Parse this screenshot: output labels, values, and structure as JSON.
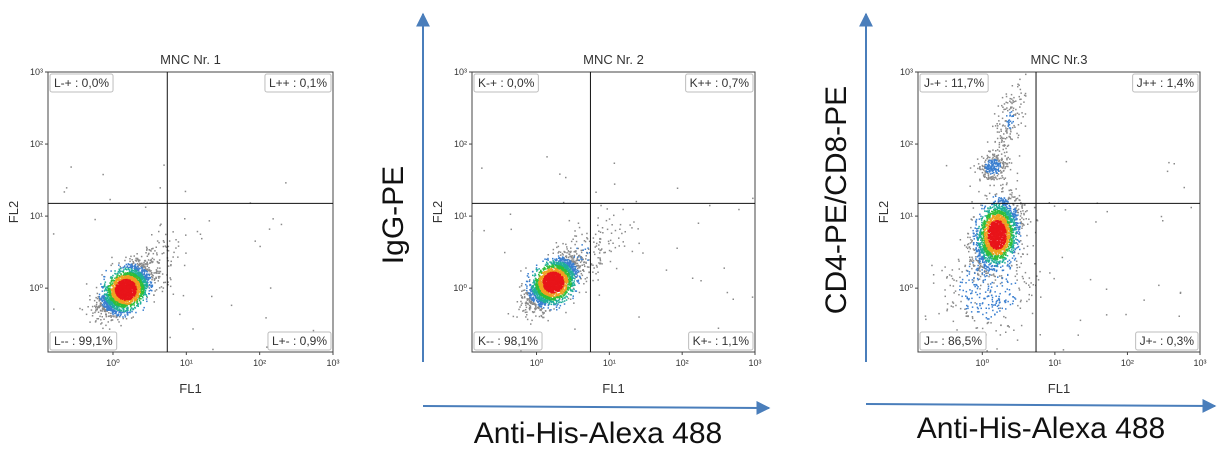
{
  "outer_labels": {
    "y_plot2": "IgG-PE",
    "y_plot3": "CD4-PE/CD8-PE",
    "x_plot2": "Anti-His-Alexa 488",
    "x_plot3": "Anti-His-Alexa 488"
  },
  "colors": {
    "arrow": "#4a7ebb",
    "frame": "#444444",
    "gate": "#111111"
  },
  "chart_data": [
    {
      "type": "scatter",
      "title": "MNC Nr. 1",
      "xlabel": "FL1",
      "ylabel": "FL2",
      "x_scale": "log",
      "y_scale": "log",
      "xlim": [
        0.13,
        1000
      ],
      "ylim": [
        0.13,
        1000
      ],
      "x_ticks": [
        {
          "v": 1,
          "label": "10⁰"
        },
        {
          "v": 10,
          "label": "10¹"
        },
        {
          "v": 100,
          "label": "10²"
        },
        {
          "v": 1000,
          "label": "10³"
        }
      ],
      "y_ticks": [
        {
          "v": 1,
          "label": "10⁰"
        },
        {
          "v": 10,
          "label": "10¹"
        },
        {
          "v": 100,
          "label": "10²"
        },
        {
          "v": 1000,
          "label": "10³"
        }
      ],
      "gate": {
        "x": 5.5,
        "y": 15
      },
      "quadrants": {
        "upper_left": "L-+ : 0,0%",
        "upper_right": "L++ : 0,1%",
        "lower_left": "L-- : 99,1%",
        "lower_right": "L+- : 0,9%"
      },
      "populations": [
        {
          "cx": 1.5,
          "cy": 0.95,
          "sx": 0.17,
          "sy": 0.17,
          "rho": 0.55,
          "n": 2600
        },
        {
          "cx": 3.2,
          "cy": 2.0,
          "sx": 0.28,
          "sy": 0.26,
          "rho": 0.6,
          "n": 120
        }
      ]
    },
    {
      "type": "scatter",
      "title": "MNC Nr. 2",
      "xlabel": "FL1",
      "ylabel": "FL2",
      "x_scale": "log",
      "y_scale": "log",
      "xlim": [
        0.13,
        1000
      ],
      "ylim": [
        0.13,
        1000
      ],
      "x_ticks": [
        {
          "v": 1,
          "label": "10⁰"
        },
        {
          "v": 10,
          "label": "10¹"
        },
        {
          "v": 100,
          "label": "10²"
        },
        {
          "v": 1000,
          "label": "10³"
        }
      ],
      "y_ticks": [
        {
          "v": 1,
          "label": "10⁰"
        },
        {
          "v": 10,
          "label": "10¹"
        },
        {
          "v": 100,
          "label": "10²"
        },
        {
          "v": 1000,
          "label": "10³"
        }
      ],
      "gate": {
        "x": 5.5,
        "y": 15
      },
      "quadrants": {
        "upper_left": "K-+ : 0,0%",
        "upper_right": "K++ : 0,7%",
        "lower_left": "K-- : 98,1%",
        "lower_right": "K+- : 1,1%"
      },
      "populations": [
        {
          "cx": 1.7,
          "cy": 1.2,
          "sx": 0.17,
          "sy": 0.17,
          "rho": 0.55,
          "n": 2600
        },
        {
          "cx": 4.5,
          "cy": 3.0,
          "sx": 0.33,
          "sy": 0.3,
          "rho": 0.6,
          "n": 160
        }
      ]
    },
    {
      "type": "scatter",
      "title": "MNC Nr.3",
      "xlabel": "FL1",
      "ylabel": "FL2",
      "x_scale": "log",
      "y_scale": "log",
      "xlim": [
        0.13,
        1000
      ],
      "ylim": [
        0.13,
        1000
      ],
      "x_ticks": [
        {
          "v": 1,
          "label": "10⁰"
        },
        {
          "v": 10,
          "label": "10¹"
        },
        {
          "v": 100,
          "label": "10²"
        },
        {
          "v": 1000,
          "label": "10³"
        }
      ],
      "y_ticks": [
        {
          "v": 1,
          "label": "10⁰"
        },
        {
          "v": 10,
          "label": "10¹"
        },
        {
          "v": 100,
          "label": "10²"
        },
        {
          "v": 1000,
          "label": "10³"
        }
      ],
      "gate": {
        "x": 5.5,
        "y": 15
      },
      "quadrants": {
        "upper_left": "J-+ : 11,7%",
        "upper_right": "J++ : 1,4%",
        "lower_left": "J-- : 86,5%",
        "lower_right": "J+- : 0,3%"
      },
      "populations": [
        {
          "cx": 1.6,
          "cy": 5.5,
          "sx": 0.15,
          "sy": 0.24,
          "rho": 0.3,
          "n": 2300
        },
        {
          "cx": 1.4,
          "cy": 48,
          "sx": 0.1,
          "sy": 0.1,
          "rho": 0.2,
          "n": 260
        },
        {
          "cx": 2.4,
          "cy": 220,
          "sx": 0.12,
          "sy": 0.28,
          "rho": 0.6,
          "n": 160
        },
        {
          "cx": 1.2,
          "cy": 1.0,
          "sx": 0.3,
          "sy": 0.35,
          "rho": 0.2,
          "n": 350
        }
      ]
    }
  ]
}
